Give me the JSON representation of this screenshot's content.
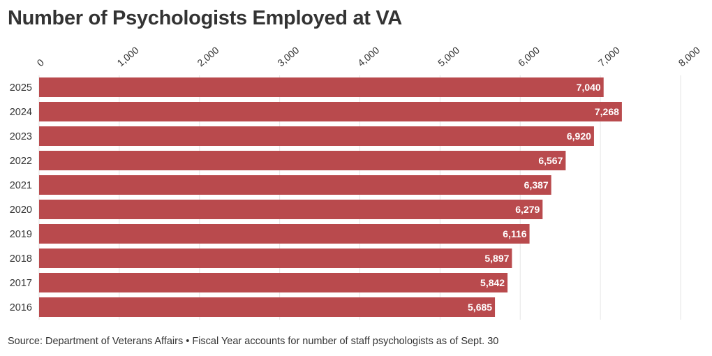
{
  "title": "Number of Psychologists Employed at VA",
  "footer": "Source: Department of Veterans Affairs • Fiscal Year accounts for number of staff psychologists as of Sept. 30",
  "colors": {
    "bar": "#b94a4d",
    "grid": "#e6e6e6",
    "text": "#333333"
  },
  "chart_data": {
    "type": "bar",
    "orientation": "horizontal",
    "categories": [
      "2025",
      "2024",
      "2023",
      "2022",
      "2021",
      "2020",
      "2019",
      "2018",
      "2017",
      "2016"
    ],
    "values": [
      7040,
      7268,
      6920,
      6567,
      6387,
      6279,
      6116,
      5897,
      5842,
      5685
    ],
    "value_labels": [
      "7,040",
      "7,268",
      "6,920",
      "6,567",
      "6,387",
      "6,279",
      "6,116",
      "5,897",
      "5,842",
      "5,685"
    ],
    "xlim": [
      0,
      8000
    ],
    "xticks": [
      0,
      1000,
      2000,
      3000,
      4000,
      5000,
      6000,
      7000,
      8000
    ],
    "xtick_labels": [
      "0",
      "1,000",
      "2,000",
      "3,000",
      "4,000",
      "5,000",
      "6,000",
      "7,000",
      "8,000"
    ],
    "xlabel": "",
    "ylabel": "",
    "axis_position": "top",
    "grid": true
  }
}
